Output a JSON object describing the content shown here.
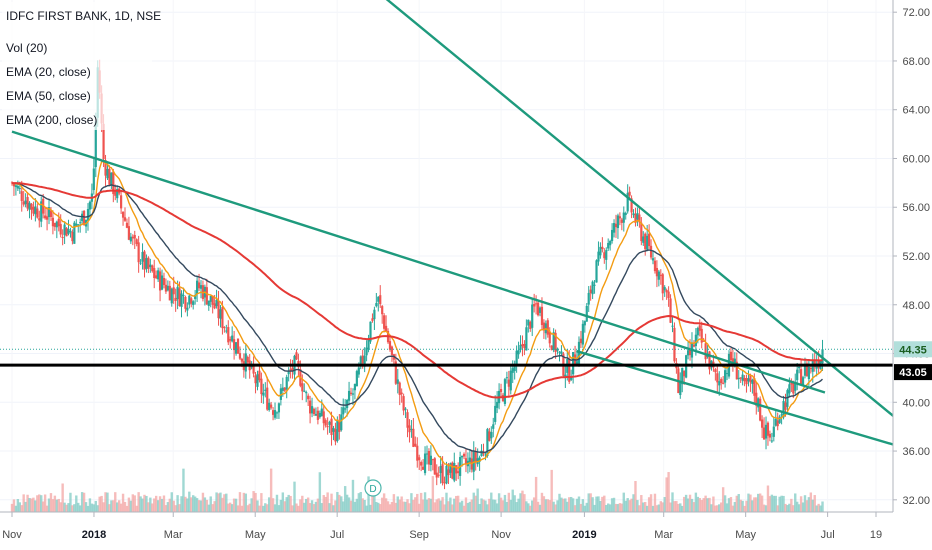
{
  "legend": {
    "symbol": "IDFC FIRST BANK, 1D, NSE",
    "studies": [
      "Vol (20)",
      "EMA (20, close)",
      "EMA (50, close)",
      "EMA (200, close)"
    ]
  },
  "dividend_marker": "D",
  "price_tags": {
    "last": "44.35",
    "level": "43.05"
  },
  "colors": {
    "up": "#26a69a",
    "down": "#ef5350",
    "ema20": "#f39c12",
    "ema50": "#34495e",
    "ema200": "#e53935",
    "trendline": "#1e9a7d",
    "level": "#000000",
    "last_tag": "#b2dfdb",
    "level_tag": "#000000"
  },
  "chart_data": {
    "type": "candlestick",
    "yaxis": {
      "ticks": [
        "72.00",
        "68.00",
        "64.00",
        "60.00",
        "56.00",
        "52.00",
        "48.00",
        "44.00",
        "40.00",
        "36.00",
        "32.00"
      ],
      "range": [
        31,
        73
      ]
    },
    "xaxis": {
      "ticks": [
        {
          "label": "Nov",
          "bold": false
        },
        {
          "label": "2018",
          "bold": true
        },
        {
          "label": "Mar",
          "bold": false
        },
        {
          "label": "May",
          "bold": false
        },
        {
          "label": "Jul",
          "bold": false
        },
        {
          "label": "Sep",
          "bold": false
        },
        {
          "label": "Nov",
          "bold": false
        },
        {
          "label": "2019",
          "bold": true
        },
        {
          "label": "Mar",
          "bold": false
        },
        {
          "label": "May",
          "bold": false
        },
        {
          "label": "Jul",
          "bold": false
        },
        {
          "label": "19",
          "bold": false
        }
      ],
      "tick_days": [
        0,
        61,
        120,
        181,
        242,
        303,
        364,
        426,
        485,
        546,
        607,
        643
      ]
    },
    "horizontal_level": 43.05,
    "last_price": 44.35,
    "keypoints": [
      [
        0,
        58.0
      ],
      [
        8,
        57.0
      ],
      [
        15,
        56.0
      ],
      [
        25,
        55.5
      ],
      [
        35,
        54.5
      ],
      [
        45,
        54.0
      ],
      [
        55,
        55.5
      ],
      [
        60,
        57.0
      ],
      [
        62,
        62.0
      ],
      [
        64,
        68.0
      ],
      [
        66,
        64.0
      ],
      [
        68,
        60.0
      ],
      [
        72,
        58.5
      ],
      [
        78,
        57.0
      ],
      [
        84,
        55.0
      ],
      [
        90,
        53.0
      ],
      [
        100,
        51.0
      ],
      [
        110,
        50.0
      ],
      [
        120,
        49.0
      ],
      [
        130,
        48.5
      ],
      [
        140,
        49.5
      ],
      [
        150,
        48.0
      ],
      [
        160,
        46.0
      ],
      [
        170,
        44.0
      ],
      [
        180,
        42.0
      ],
      [
        188,
        40.5
      ],
      [
        195,
        39.5
      ],
      [
        200,
        40.5
      ],
      [
        205,
        42.0
      ],
      [
        210,
        43.0
      ],
      [
        215,
        42.0
      ],
      [
        220,
        40.0
      ],
      [
        228,
        39.0
      ],
      [
        235,
        38.0
      ],
      [
        240,
        37.5
      ],
      [
        245,
        38.5
      ],
      [
        250,
        40.0
      ],
      [
        255,
        41.0
      ],
      [
        262,
        44.0
      ],
      [
        268,
        47.0
      ],
      [
        272,
        48.5
      ],
      [
        276,
        47.0
      ],
      [
        280,
        45.0
      ],
      [
        284,
        43.0
      ],
      [
        290,
        40.0
      ],
      [
        296,
        37.5
      ],
      [
        302,
        36.0
      ],
      [
        308,
        35.0
      ],
      [
        315,
        34.5
      ],
      [
        322,
        34.0
      ],
      [
        330,
        34.5
      ],
      [
        340,
        35.0
      ],
      [
        348,
        35.5
      ],
      [
        354,
        37.0
      ],
      [
        360,
        39.5
      ],
      [
        366,
        41.0
      ],
      [
        372,
        42.5
      ],
      [
        378,
        44.0
      ],
      [
        385,
        46.5
      ],
      [
        390,
        48.0
      ],
      [
        395,
        47.0
      ],
      [
        400,
        45.5
      ],
      [
        405,
        44.5
      ],
      [
        410,
        43.0
      ],
      [
        415,
        42.5
      ],
      [
        420,
        44.0
      ],
      [
        426,
        46.5
      ],
      [
        432,
        50.0
      ],
      [
        438,
        52.0
      ],
      [
        445,
        53.5
      ],
      [
        452,
        55.0
      ],
      [
        458,
        56.5
      ],
      [
        464,
        55.0
      ],
      [
        470,
        53.5
      ],
      [
        476,
        52.0
      ],
      [
        482,
        50.5
      ],
      [
        488,
        48.5
      ],
      [
        492,
        45.0
      ],
      [
        496,
        41.0
      ],
      [
        500,
        42.5
      ],
      [
        505,
        44.0
      ],
      [
        510,
        45.5
      ],
      [
        515,
        44.5
      ],
      [
        520,
        43.0
      ],
      [
        525,
        41.5
      ],
      [
        530,
        42.5
      ],
      [
        535,
        43.5
      ],
      [
        540,
        42.5
      ],
      [
        545,
        41.0
      ],
      [
        550,
        41.5
      ],
      [
        555,
        40.0
      ],
      [
        560,
        37.5
      ],
      [
        565,
        37.0
      ],
      [
        570,
        39.0
      ],
      [
        575,
        40.0
      ],
      [
        580,
        41.0
      ],
      [
        585,
        42.0
      ],
      [
        590,
        42.5
      ],
      [
        595,
        43.0
      ],
      [
        600,
        43.5
      ],
      [
        604,
        44.35
      ]
    ]
  }
}
